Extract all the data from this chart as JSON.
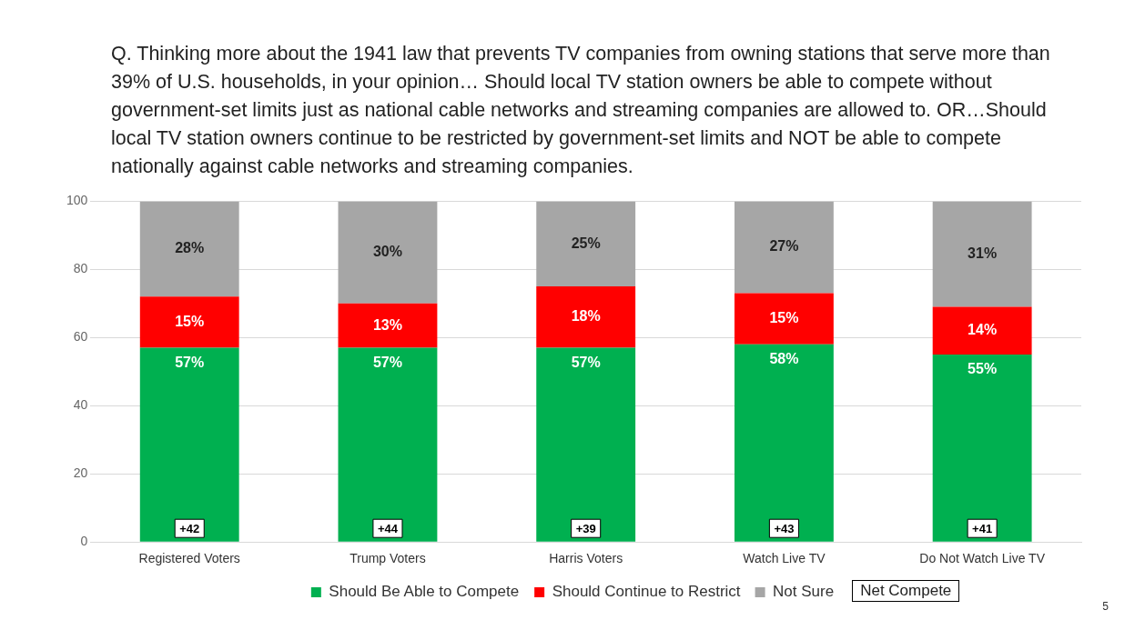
{
  "chart_data": {
    "type": "bar",
    "stacked": true,
    "title": "Q. Thinking more about the 1941 law that prevents TV companies from owning stations that serve more than 39% of U.S. households, in your opinion… Should local TV station owners be able to compete without government-set limits just as national cable networks and streaming companies are allowed to. OR…Should local TV station owners continue to be restricted by government-set limits and NOT be able to compete nationally against cable networks and streaming companies.",
    "categories": [
      "Registered Voters",
      "Trump Voters",
      "Harris Voters",
      "Watch Live TV",
      "Do Not Watch Live TV"
    ],
    "series": [
      {
        "name": "Should Be Able to Compete",
        "color": "#00b050",
        "values": [
          57,
          57,
          57,
          58,
          55
        ],
        "value_labels": [
          "57%",
          "57%",
          "57%",
          "58%",
          "55%"
        ]
      },
      {
        "name": "Should Continue to Restrict",
        "color": "#ff0000",
        "values": [
          15,
          13,
          18,
          15,
          14
        ],
        "value_labels": [
          "15%",
          "13%",
          "18%",
          "15%",
          "14%"
        ]
      },
      {
        "name": "Not Sure",
        "color": "#a6a6a6",
        "values": [
          28,
          30,
          25,
          27,
          31
        ],
        "value_labels": [
          "28%",
          "30%",
          "25%",
          "27%",
          "31%"
        ]
      }
    ],
    "ylim": [
      0,
      100
    ],
    "yticks": [
      0,
      20,
      40,
      60,
      80,
      100
    ],
    "grid": "y",
    "legend": "bottom",
    "annotations": [
      {
        "text": "+42",
        "x": "Registered Voters",
        "y": 4
      },
      {
        "text": "+44",
        "x": "Trump Voters",
        "y": 4
      },
      {
        "text": "+39",
        "x": "Harris Voters",
        "y": 4
      },
      {
        "text": "+43",
        "x": "Watch Live TV",
        "y": 4
      },
      {
        "text": "+41",
        "x": "Do Not Watch Live TV",
        "y": 4
      },
      "Net Compete",
      "5"
    ]
  }
}
